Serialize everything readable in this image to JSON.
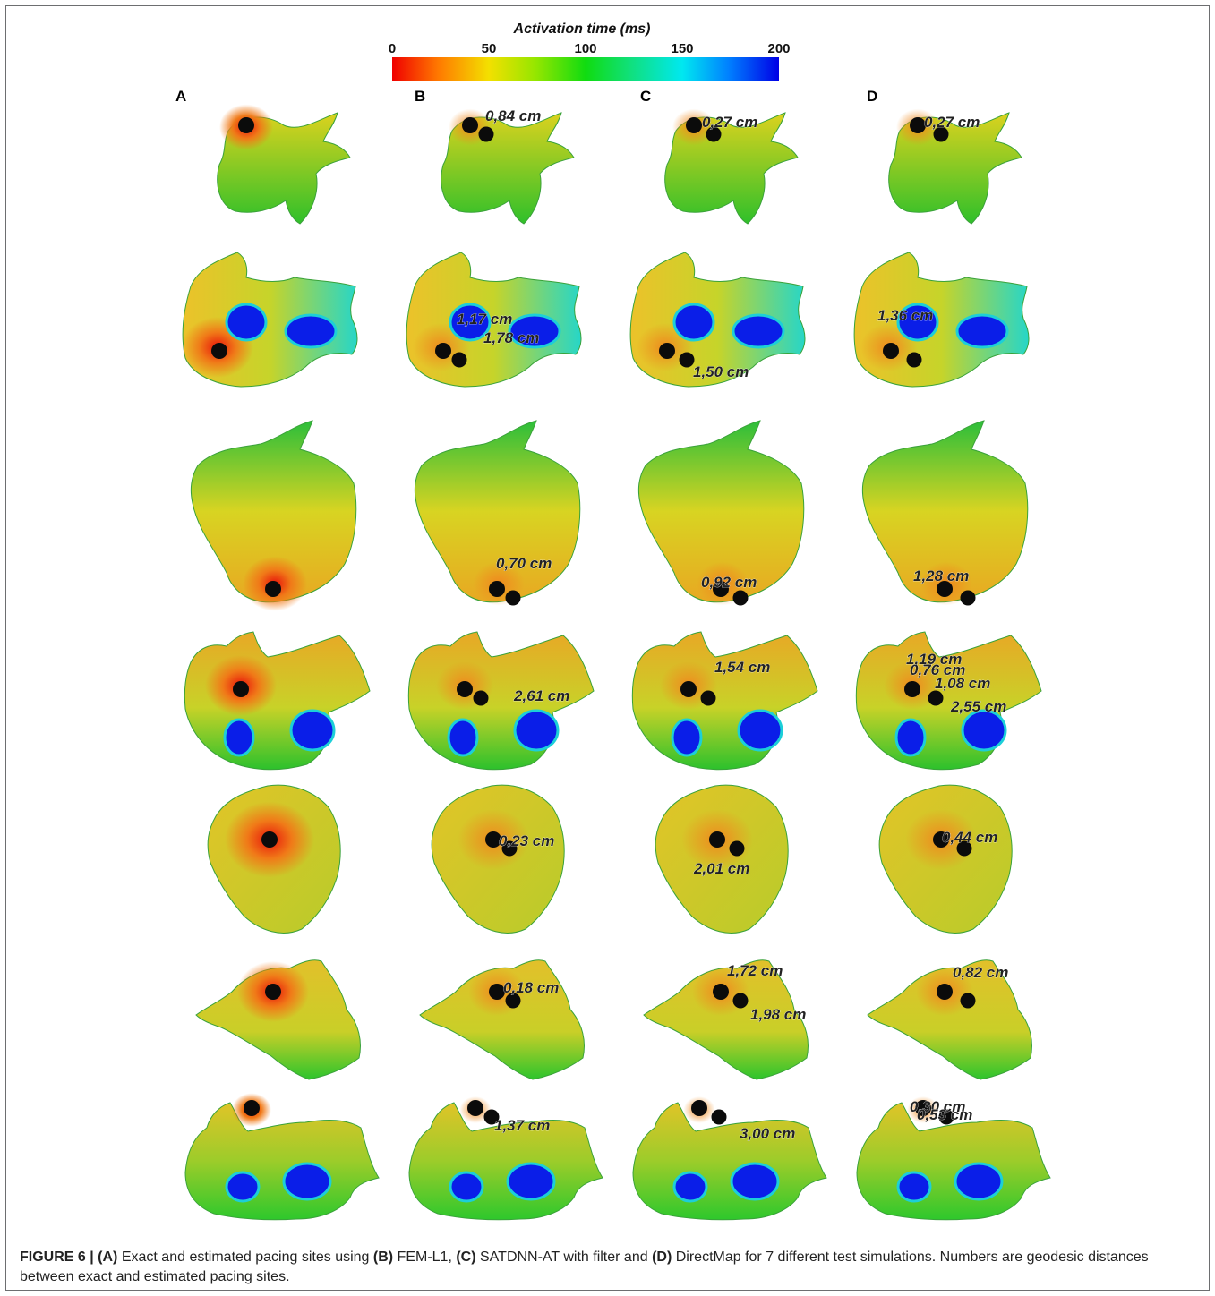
{
  "colorbar": {
    "title": "Activation time (ms)",
    "ticks": [
      "0",
      "50",
      "100",
      "150",
      "200"
    ]
  },
  "columns": [
    "A",
    "B",
    "C",
    "D"
  ],
  "distances": {
    "row1": {
      "B": "0,84 cm",
      "C": "0,27 cm",
      "D": "0,27 cm"
    },
    "row2": {
      "B1": "1,17 cm",
      "B2": "1,78 cm",
      "C": "1,50 cm",
      "D": "1,36 cm"
    },
    "row3": {
      "B": "0,70 cm",
      "C": "0,92 cm",
      "D": "1,28 cm"
    },
    "row4": {
      "B": "2,61 cm",
      "C": "1,54 cm",
      "D1": "1,19 cm",
      "D2": "0,76 cm",
      "D3": "1,08 cm",
      "D4": "2,55 cm"
    },
    "row5": {
      "B": "0,23 cm",
      "C": "2,01 cm",
      "D": "0,44 cm"
    },
    "row6": {
      "B": "0,18 cm",
      "C1": "1,72 cm",
      "C2": "1,98 cm",
      "D": "0,82 cm"
    },
    "row7": {
      "B": "1,37 cm",
      "C": "3,00 cm",
      "D1": "0,30 cm",
      "D2": "0,53 cm"
    }
  },
  "caption": {
    "label": "FIGURE 6 |",
    "a": "(A)",
    "t1": " Exact and estimated pacing sites using ",
    "b": "(B)",
    "t2": " FEM-L1, ",
    "c": "(C)",
    "t3": " SATDNN-AT with filter and ",
    "d": "(D)",
    "t4": " DirectMap for 7 different test simulations. Numbers are geodesic distances between exact and estimated pacing sites."
  },
  "colors": {
    "red": "#e8140a",
    "orange": "#f08a1a",
    "yellow": "#e6d41c",
    "green": "#2fc62a",
    "cyan": "#1ccfd8",
    "blue": "#0a1ee8"
  }
}
